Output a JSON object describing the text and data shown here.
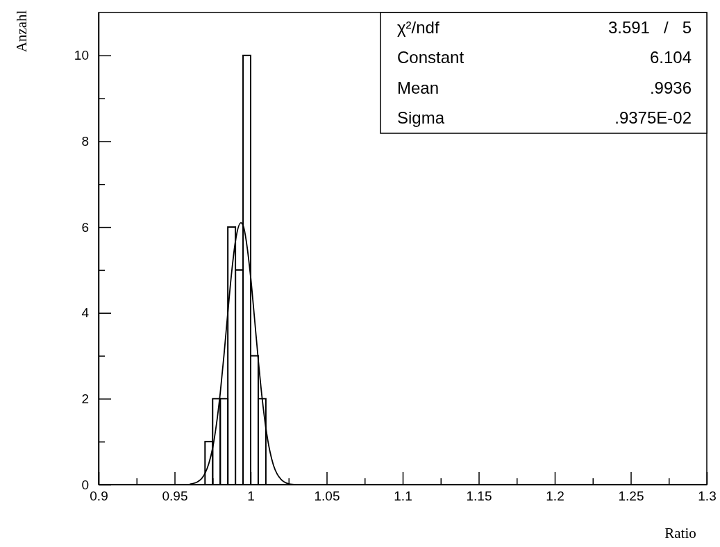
{
  "chart_data": {
    "type": "histogram",
    "xlabel": "Ratio",
    "ylabel": "Anzahl",
    "xlim": [
      0.9,
      1.3
    ],
    "ylim": [
      0,
      11
    ],
    "xticks": [
      0.9,
      {
        "value": 0.925,
        "label": null
      },
      0.95,
      {
        "value": 0.975,
        "label": null
      },
      1,
      {
        "value": 1.025,
        "label": null
      },
      1.05,
      {
        "value": 1.075,
        "label": null
      },
      1.1,
      {
        "value": 1.125,
        "label": null
      },
      1.15,
      {
        "value": 1.175,
        "label": null
      },
      1.2,
      {
        "value": 1.225,
        "label": null
      },
      1.25,
      {
        "value": 1.275,
        "label": null
      },
      1.3
    ],
    "yticks": [
      0,
      {
        "value": 1,
        "label": null
      },
      2,
      {
        "value": 3,
        "label": null
      },
      4,
      {
        "value": 5,
        "label": null
      },
      6,
      {
        "value": 7,
        "label": null
      },
      8,
      {
        "value": 9,
        "label": null
      },
      10
    ],
    "annotations": [
      "χ²/ndf 3.591 / 5",
      "Constant 6.104",
      "Mean .9936",
      "Sigma .9375E-02"
    ],
    "series": [
      {
        "color": "#000000",
        "bins": [
          0.97,
          0.975,
          0.98,
          0.985,
          0.99,
          0.995,
          1.0,
          1.005,
          1.01
        ],
        "values": [
          1,
          2,
          2,
          6,
          5,
          10,
          3,
          2
        ]
      },
      {
        "type": "line",
        "color": "#000000",
        "x": [
          0.96,
          0.965,
          0.97,
          0.9725,
          0.975,
          0.9775,
          0.98,
          0.9825,
          0.985,
          0.9875,
          0.99,
          0.9936,
          0.995,
          1.0,
          1.0025,
          1.005,
          1.0075,
          1.01,
          1.0125,
          1.015,
          1.0175,
          1.02,
          1.025,
          1.03
        ],
        "values": [
          0.01,
          0.06,
          0.26,
          0.49,
          0.85,
          1.4,
          2.13,
          3.03,
          4.01,
          4.94,
          5.67,
          6.1,
          6.04,
          4.84,
          3.89,
          2.91,
          2.03,
          1.32,
          0.8,
          0.45,
          0.24,
          0.12,
          0.02,
          0
        ]
      }
    ]
  }
}
